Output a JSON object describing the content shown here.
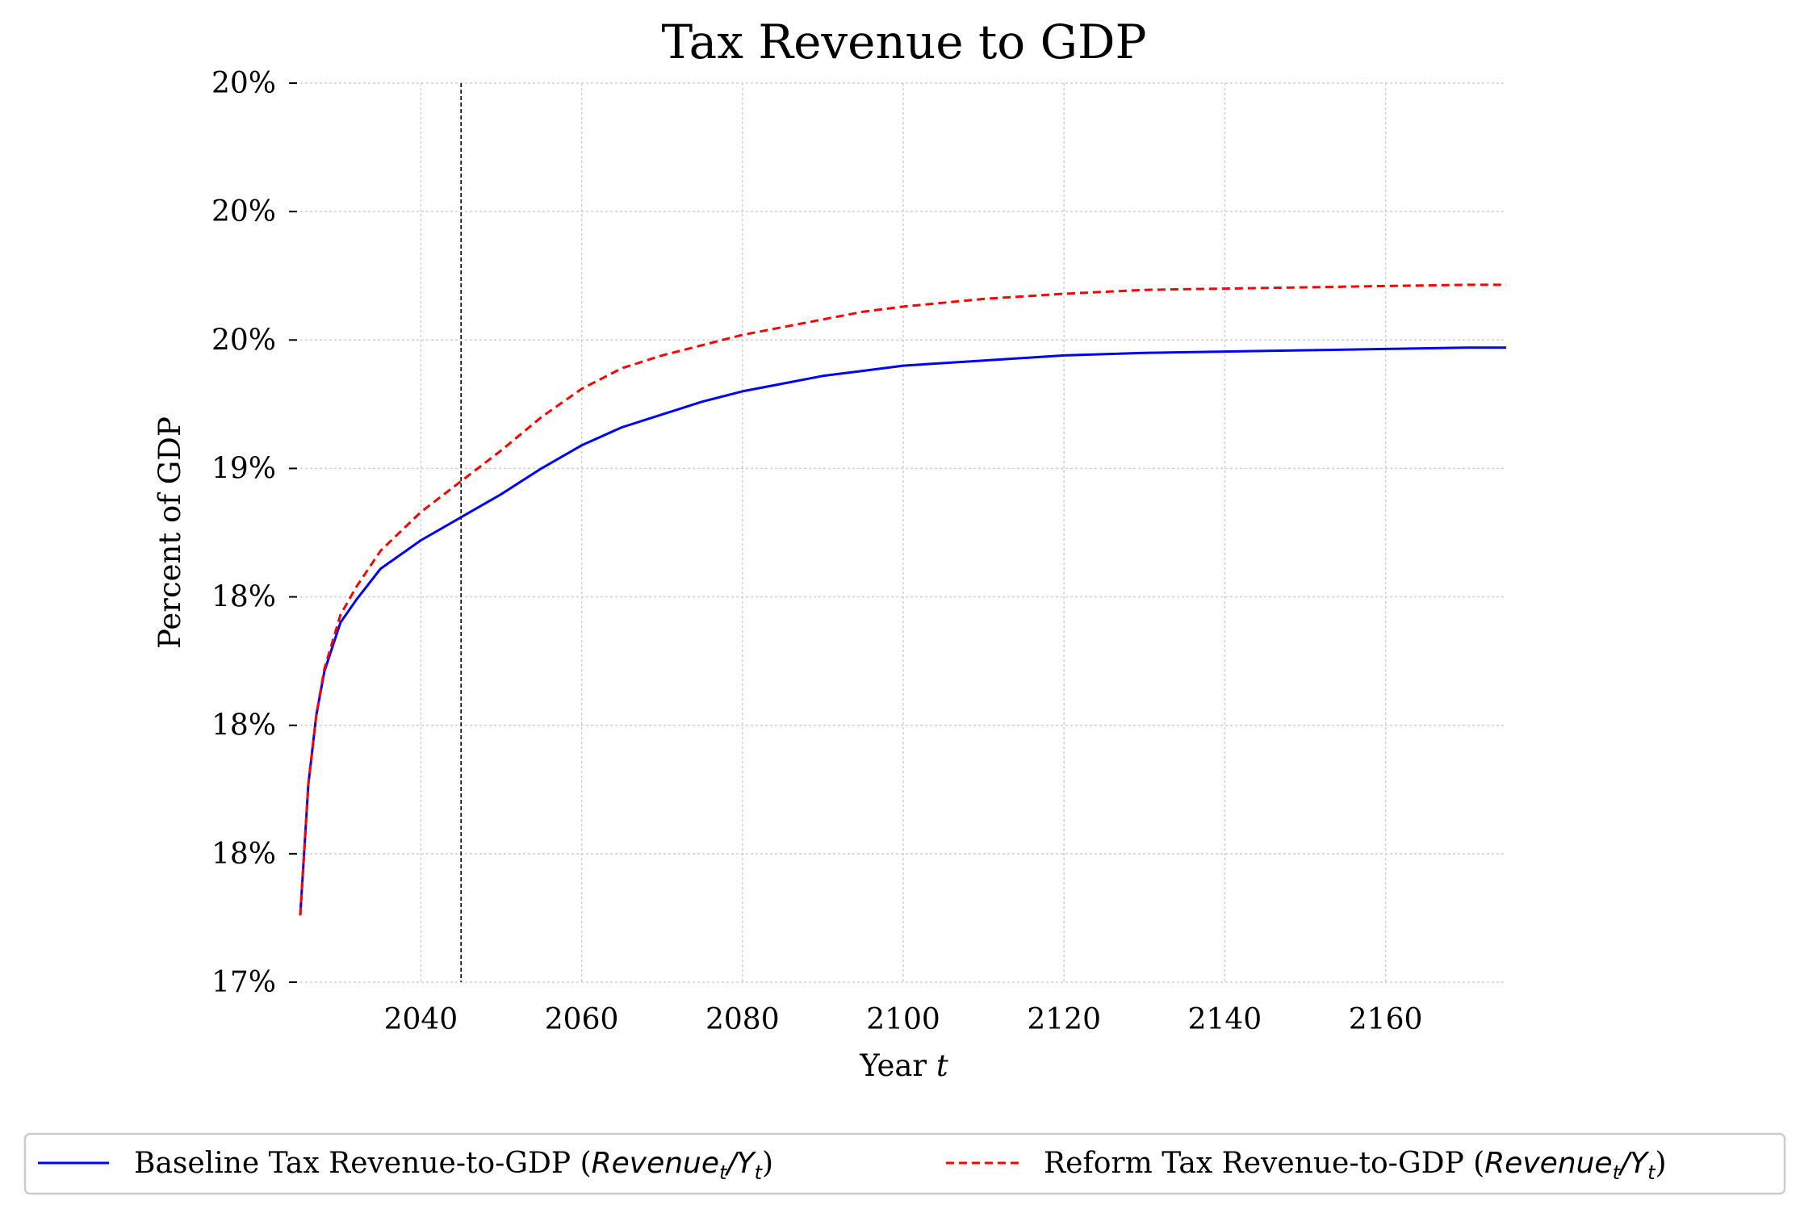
{
  "chart_data": {
    "type": "line",
    "title": "Tax Revenue to GDP",
    "xlabel": "Year t",
    "xlabel_parts": {
      "text": "Year ",
      "var": "t"
    },
    "ylabel": "Percent of GDP",
    "xlim": [
      2025,
      2175
    ],
    "ylim": [
      17.0,
      20.5
    ],
    "xticks": [
      2040,
      2060,
      2080,
      2100,
      2120,
      2140,
      2160
    ],
    "xtick_labels": [
      "2040",
      "2060",
      "2080",
      "2100",
      "2120",
      "2140",
      "2160"
    ],
    "yticks": [
      17.0,
      17.5,
      18.0,
      18.5,
      19.0,
      19.5,
      20.0,
      20.5
    ],
    "ytick_labels": [
      "17%",
      "18%",
      "18%",
      "18%",
      "19%",
      "20%",
      "20%",
      "20%"
    ],
    "grid": true,
    "vline": {
      "x": 2045,
      "style": "dashed",
      "color": "#000000"
    },
    "legend": {
      "placement": "bottom-center"
    },
    "series": [
      {
        "name": "Baseline Tax Revenue-to-GDP (Revenue_t/Y_t)",
        "label_text": "Baseline Tax Revenue-to-GDP (",
        "label_math": "Revenue",
        "color": "#0000ff",
        "style": "solid",
        "x": [
          2025,
          2026,
          2027,
          2028,
          2030,
          2032,
          2035,
          2040,
          2045,
          2050,
          2055,
          2060,
          2065,
          2070,
          2075,
          2080,
          2085,
          2090,
          2095,
          2100,
          2110,
          2120,
          2130,
          2140,
          2150,
          2160,
          2170,
          2175
        ],
        "values": [
          17.26,
          17.77,
          18.04,
          18.21,
          18.4,
          18.49,
          18.61,
          18.72,
          18.81,
          18.9,
          19.0,
          19.09,
          19.16,
          19.21,
          19.26,
          19.3,
          19.33,
          19.36,
          19.38,
          19.4,
          19.42,
          19.44,
          19.45,
          19.455,
          19.46,
          19.465,
          19.47,
          19.47
        ]
      },
      {
        "name": "Reform Tax Revenue-to-GDP (Revenue_t/Y_t)",
        "label_text": "Reform Tax Revenue-to-GDP (",
        "label_math": "Revenue",
        "color": "#ff0000",
        "style": "dashed",
        "x": [
          2025,
          2026,
          2027,
          2028,
          2030,
          2032,
          2035,
          2040,
          2045,
          2050,
          2055,
          2060,
          2065,
          2070,
          2075,
          2080,
          2085,
          2090,
          2095,
          2100,
          2110,
          2120,
          2130,
          2140,
          2150,
          2160,
          2170,
          2175
        ],
        "values": [
          17.26,
          17.77,
          18.04,
          18.22,
          18.43,
          18.54,
          18.68,
          18.83,
          18.95,
          19.07,
          19.2,
          19.31,
          19.39,
          19.44,
          19.48,
          19.52,
          19.55,
          19.58,
          19.61,
          19.63,
          19.66,
          19.68,
          19.695,
          19.7,
          19.705,
          19.71,
          19.715,
          19.715
        ]
      }
    ]
  }
}
